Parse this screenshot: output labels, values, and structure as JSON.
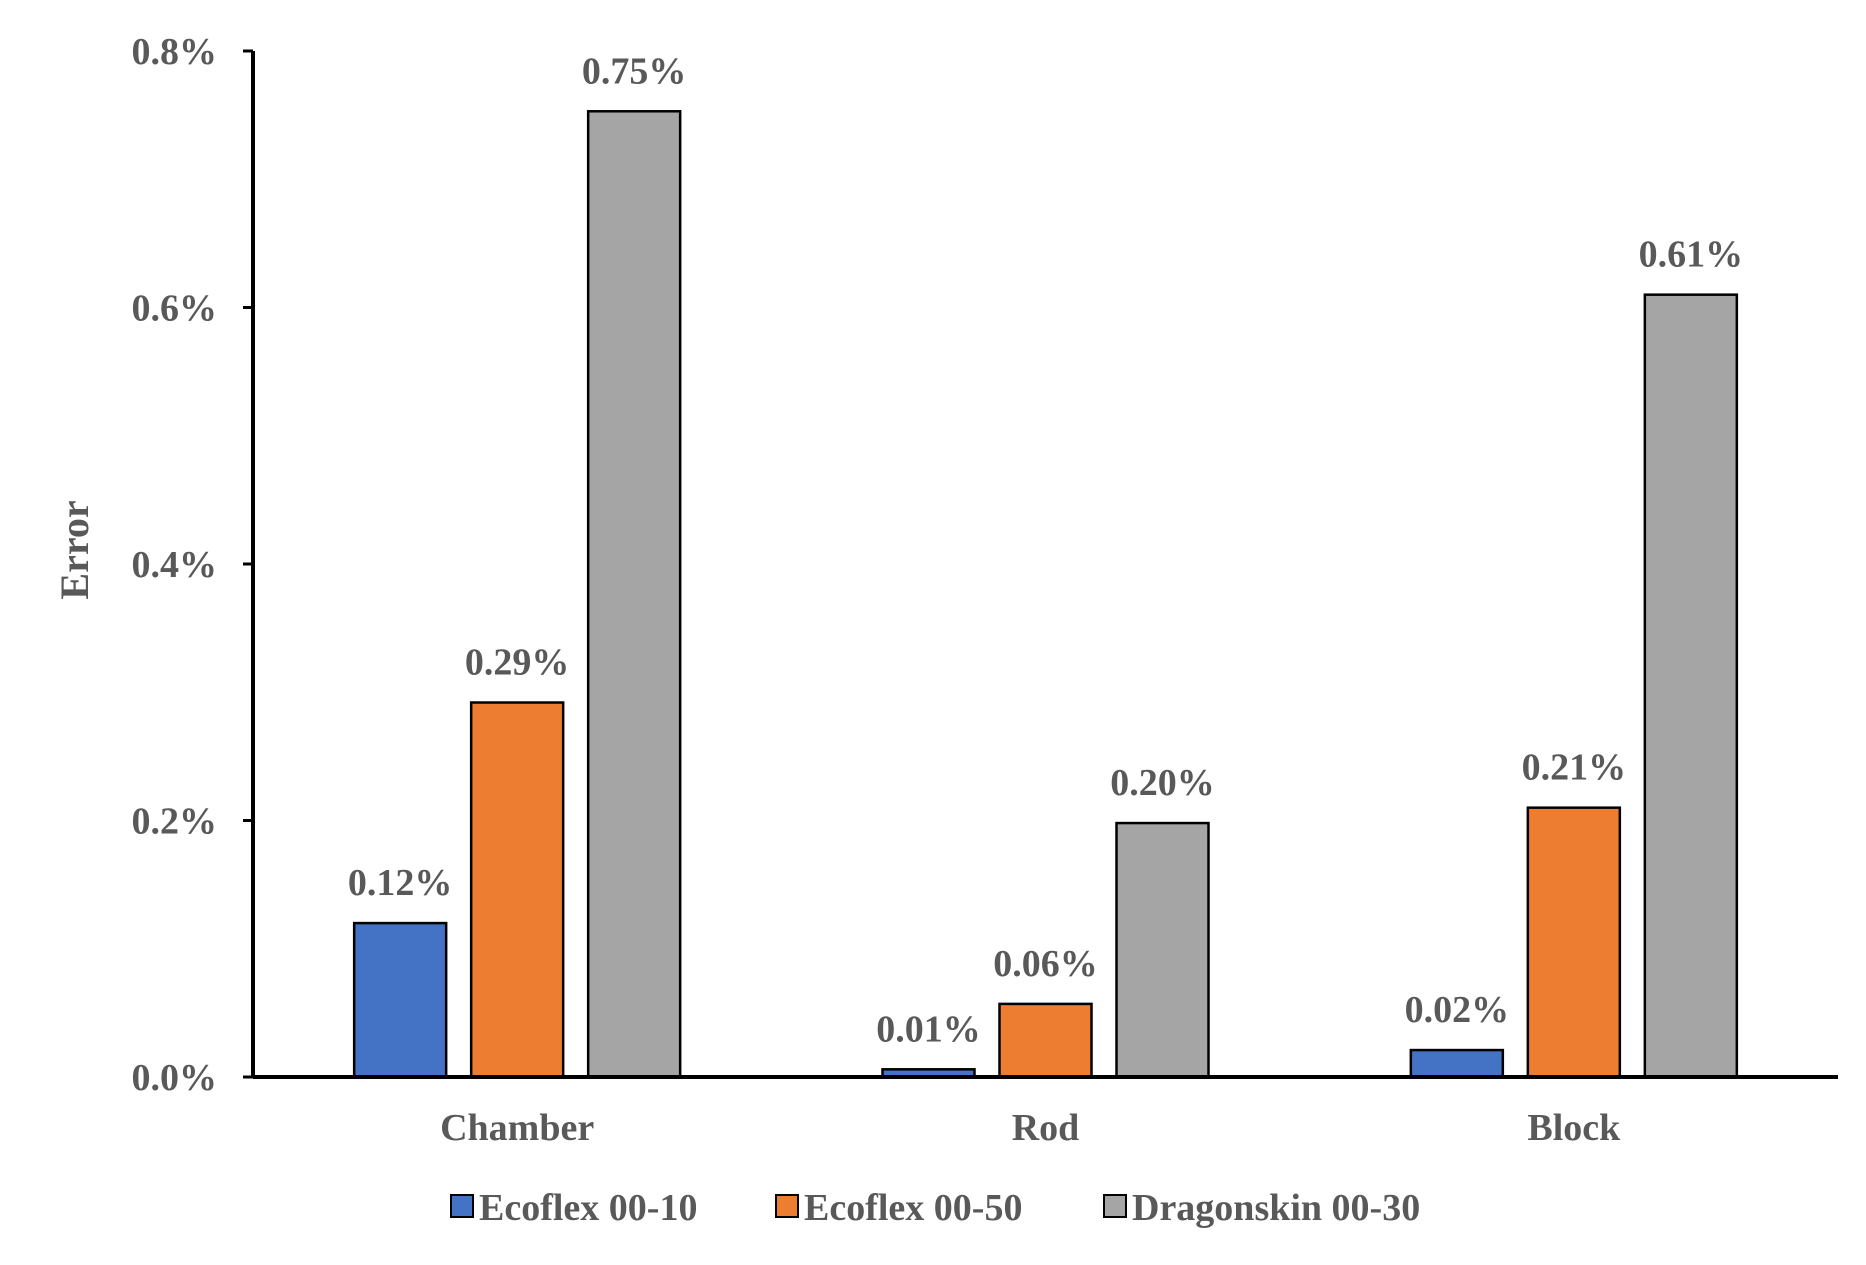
{
  "chart_data": {
    "type": "bar",
    "title": "",
    "xlabel": "",
    "ylabel": "Error",
    "ylim": [
      0,
      0.8
    ],
    "y_ticks": [
      0.0,
      0.2,
      0.4,
      0.6,
      0.8
    ],
    "y_tick_labels": [
      "0.0%",
      "0.2%",
      "0.4%",
      "0.6%",
      "0.8%"
    ],
    "categories": [
      "Chamber",
      "Rod",
      "Block"
    ],
    "grid": false,
    "legend_position": "bottom",
    "series": [
      {
        "name": "Ecoflex 00-10",
        "color": "#4472C4",
        "values": [
          0.12,
          0.006,
          0.021
        ],
        "labels": [
          "0.12%",
          "0.01%",
          "0.02%"
        ]
      },
      {
        "name": "Ecoflex 00-50",
        "color": "#ED7D31",
        "values": [
          0.292,
          0.057,
          0.21
        ],
        "labels": [
          "0.29%",
          "0.06%",
          "0.21%"
        ]
      },
      {
        "name": "Dragonskin 00-30",
        "color": "#A5A5A5",
        "values": [
          0.753,
          0.198,
          0.61
        ],
        "labels": [
          "0.75%",
          "0.20%",
          "0.61%"
        ]
      }
    ]
  }
}
